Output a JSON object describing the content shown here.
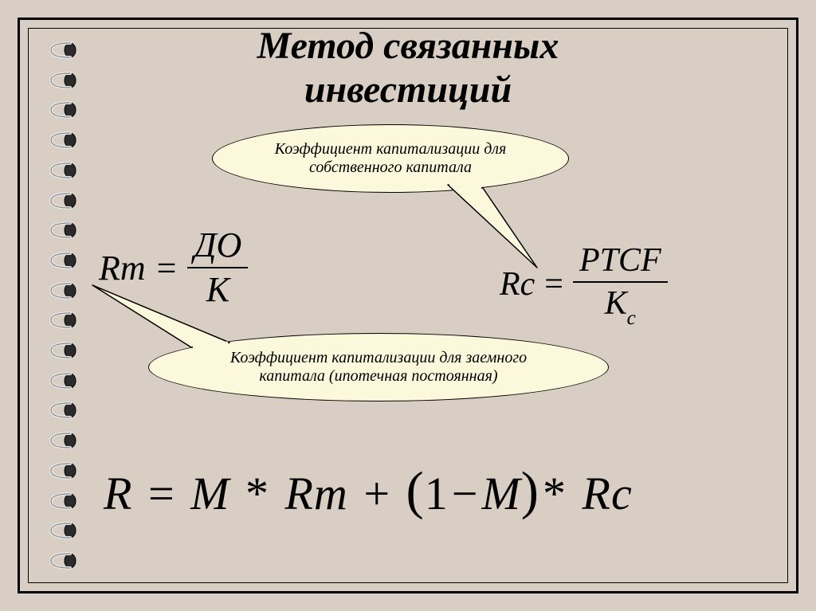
{
  "title_line1": "Метод связанных",
  "title_line2": "инвестиций",
  "bubble1_line1": "Коэффициент капитализации для",
  "bubble1_line2": "собственного капитала",
  "bubble2_line1": "Коэффициент капитализации для заемного",
  "bubble2_line2": "капитала (ипотечная постоянная)",
  "rm": {
    "lhs": "Rm",
    "eq": "=",
    "num": "ДО",
    "den": "К"
  },
  "rc": {
    "lhs": "Rc",
    "eq": "=",
    "num": "PTCF",
    "den_base": "К",
    "den_sub": "с"
  },
  "main": {
    "R": "R",
    "eq": "=",
    "M": "M",
    "star": "*",
    "Rm": "Rm",
    "plus": "+",
    "lp": "(",
    "one": "1",
    "minus": "−",
    "M2": "M",
    "rp": ")",
    "star2": "*",
    "Rc": "Rc"
  },
  "colors": {
    "background": "#d8cec3",
    "bubble_fill": "#fcf8dc",
    "border": "#000000",
    "text": "#000000"
  },
  "spiral_rings": 18
}
